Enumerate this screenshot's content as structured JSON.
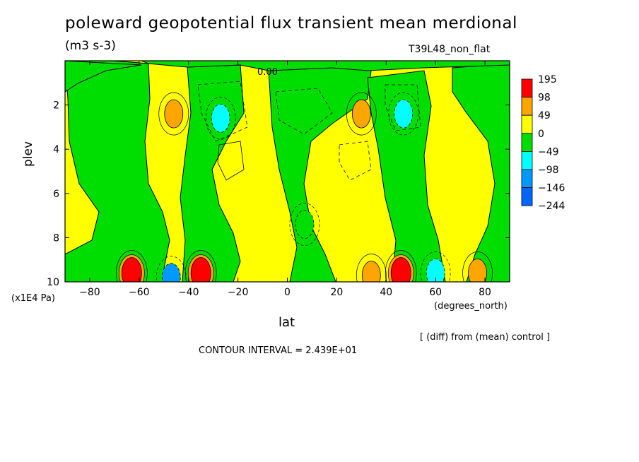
{
  "title": "poleward geopotential flux transient mean merdional",
  "units": "(m3 s-3)",
  "run_id": "T39L48_non_flat",
  "diff_note": "[ (diff) from (mean) control ]",
  "contour_interval": "CONTOUR INTERVAL = 2.439E+01",
  "chart_data": {
    "type": "heatmap",
    "xlabel": "lat",
    "x_unit": "(degrees_north)",
    "ylabel": "plev",
    "y_unit": "(x1E4 Pa)",
    "xlim": [
      -90,
      90
    ],
    "ylim": [
      0,
      10
    ],
    "y_inverted": true,
    "x_ticks": [
      -80,
      -60,
      -40,
      -20,
      0,
      20,
      40,
      60,
      80
    ],
    "y_ticks": [
      2,
      4,
      6,
      8,
      10
    ],
    "contour_label": "0.00",
    "legend": {
      "placement": "right",
      "levels": [
        "195",
        "98",
        "49",
        "0",
        "-49",
        "-98",
        "-146",
        "-244"
      ],
      "colors": [
        "#ff0000",
        "#ffa500",
        "#ffff00",
        "#00dd00",
        "#00ffff",
        "#0099ff",
        "#0066ff"
      ]
    },
    "features": [
      {
        "lat": -46,
        "plev": 2.4,
        "value": 73,
        "color": "#ffa500"
      },
      {
        "lat": -27,
        "plev": 2.6,
        "value": -73,
        "color": "#00ffff"
      },
      {
        "lat": 30,
        "plev": 2.4,
        "value": 73,
        "color": "#ffa500"
      },
      {
        "lat": 47,
        "plev": 2.4,
        "value": -73,
        "color": "#00ffff"
      },
      {
        "lat": -63,
        "plev": 9.6,
        "value": 195,
        "color": "#ff0000"
      },
      {
        "lat": -35,
        "plev": 9.6,
        "value": 195,
        "color": "#ff0000"
      },
      {
        "lat": -47,
        "plev": 9.8,
        "value": -98,
        "color": "#0099ff"
      },
      {
        "lat": 46,
        "plev": 9.6,
        "value": 195,
        "color": "#ff0000"
      },
      {
        "lat": 34,
        "plev": 9.7,
        "value": 73,
        "color": "#ffa500"
      },
      {
        "lat": 60,
        "plev": 9.6,
        "value": -73,
        "color": "#00ffff"
      },
      {
        "lat": 77,
        "plev": 9.6,
        "value": 73,
        "color": "#ffa500"
      },
      {
        "lat": 7,
        "plev": 7.4,
        "value": -24,
        "color": "#00dd00"
      }
    ]
  }
}
